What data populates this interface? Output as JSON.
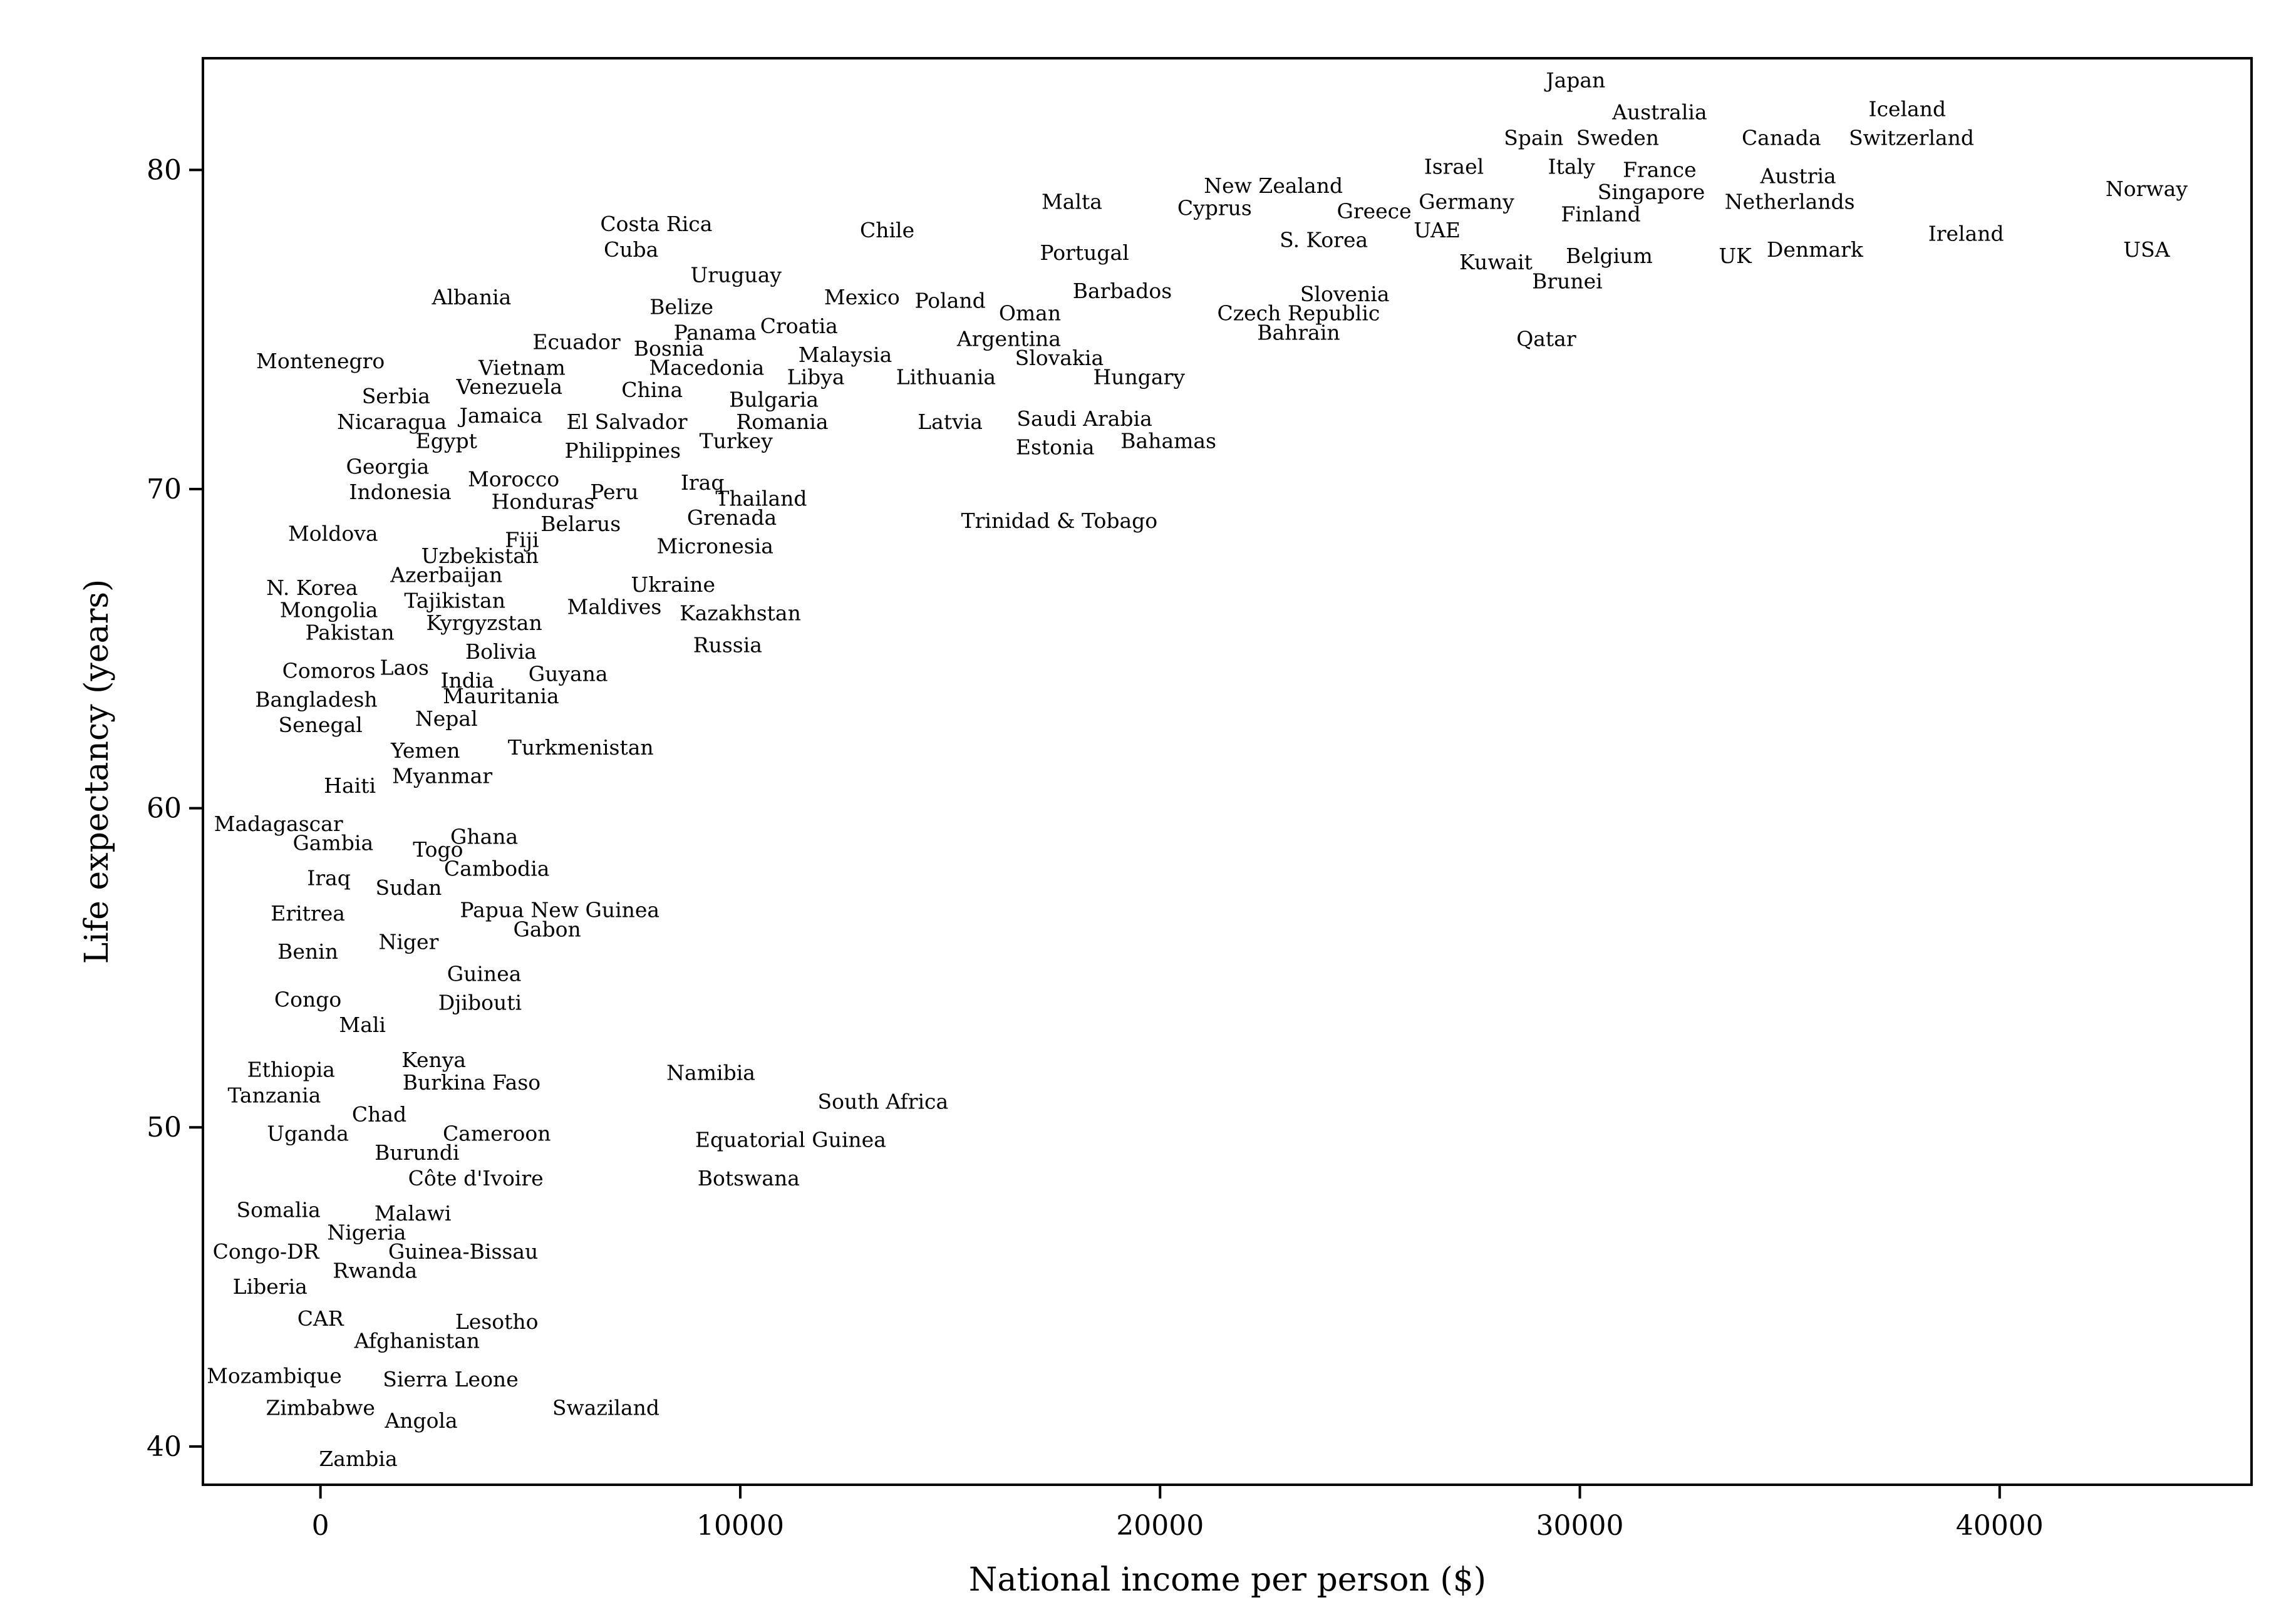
{
  "chart_data": {
    "type": "scatter",
    "title": "",
    "xlabel": "National income per person ($)",
    "ylabel": "Life expectancy (years)",
    "xlim": [
      -2800,
      46000
    ],
    "ylim": [
      38.8,
      83.5
    ],
    "xticks": [
      0,
      10000,
      20000,
      30000,
      40000
    ],
    "xtick_labels": [
      "0",
      "10000",
      "20000",
      "30000",
      "40000"
    ],
    "yticks": [
      40,
      50,
      60,
      70,
      80
    ],
    "ytick_labels": [
      "40",
      "50",
      "60",
      "70",
      "80"
    ],
    "grid": false,
    "marker": "country name text label",
    "points": [
      {
        "label": "Japan",
        "x": 29900,
        "y": 82.8
      },
      {
        "label": "Australia",
        "x": 31900,
        "y": 81.8
      },
      {
        "label": "Iceland",
        "x": 37800,
        "y": 81.9
      },
      {
        "label": "Switzerland",
        "x": 37900,
        "y": 81.0
      },
      {
        "label": "Spain",
        "x": 28900,
        "y": 81.0
      },
      {
        "label": "Sweden",
        "x": 30900,
        "y": 81.0
      },
      {
        "label": "Canada",
        "x": 34800,
        "y": 81.0
      },
      {
        "label": "Israel",
        "x": 27000,
        "y": 80.1
      },
      {
        "label": "Italy",
        "x": 29800,
        "y": 80.1
      },
      {
        "label": "France",
        "x": 31900,
        "y": 80.0
      },
      {
        "label": "Austria",
        "x": 35200,
        "y": 79.8
      },
      {
        "label": "Norway",
        "x": 43500,
        "y": 79.4
      },
      {
        "label": "New Zealand",
        "x": 22700,
        "y": 79.5
      },
      {
        "label": "Singapore",
        "x": 31700,
        "y": 79.3
      },
      {
        "label": "Malta",
        "x": 17900,
        "y": 79.0
      },
      {
        "label": "Germany",
        "x": 27300,
        "y": 79.0
      },
      {
        "label": "Netherlands",
        "x": 35000,
        "y": 79.0
      },
      {
        "label": "Cyprus",
        "x": 21300,
        "y": 78.8
      },
      {
        "label": "Greece",
        "x": 25100,
        "y": 78.7
      },
      {
        "label": "Finland",
        "x": 30500,
        "y": 78.6
      },
      {
        "label": "Costa Rica",
        "x": 8000,
        "y": 78.3
      },
      {
        "label": "Chile",
        "x": 13500,
        "y": 78.1
      },
      {
        "label": "UAE",
        "x": 26600,
        "y": 78.1
      },
      {
        "label": "Ireland",
        "x": 39200,
        "y": 78.0
      },
      {
        "label": "S. Korea",
        "x": 23900,
        "y": 77.8
      },
      {
        "label": "Cuba",
        "x": 7400,
        "y": 77.5
      },
      {
        "label": "Portugal",
        "x": 18200,
        "y": 77.4
      },
      {
        "label": "Denmark",
        "x": 35600,
        "y": 77.5
      },
      {
        "label": "USA",
        "x": 43500,
        "y": 77.5
      },
      {
        "label": "UK",
        "x": 33700,
        "y": 77.3
      },
      {
        "label": "Belgium",
        "x": 30700,
        "y": 77.3
      },
      {
        "label": "Kuwait",
        "x": 28000,
        "y": 77.1
      },
      {
        "label": "Uruguay",
        "x": 9900,
        "y": 76.7
      },
      {
        "label": "Brunei",
        "x": 29700,
        "y": 76.5
      },
      {
        "label": "Barbados",
        "x": 19100,
        "y": 76.2
      },
      {
        "label": "Slovenia",
        "x": 24400,
        "y": 76.1
      },
      {
        "label": "Albania",
        "x": 3600,
        "y": 76.0
      },
      {
        "label": "Mexico",
        "x": 12900,
        "y": 76.0
      },
      {
        "label": "Poland",
        "x": 15000,
        "y": 75.9
      },
      {
        "label": "Belize",
        "x": 8600,
        "y": 75.7
      },
      {
        "label": "Czech Republic",
        "x": 23300,
        "y": 75.5
      },
      {
        "label": "Oman",
        "x": 16900,
        "y": 75.5
      },
      {
        "label": "Croatia",
        "x": 11400,
        "y": 75.1
      },
      {
        "label": "Bahrain",
        "x": 23300,
        "y": 74.9
      },
      {
        "label": "Panama",
        "x": 9400,
        "y": 74.9
      },
      {
        "label": "Argentina",
        "x": 16400,
        "y": 74.7
      },
      {
        "label": "Qatar",
        "x": 29200,
        "y": 74.7
      },
      {
        "label": "Ecuador",
        "x": 6100,
        "y": 74.6
      },
      {
        "label": "Bosnia",
        "x": 8300,
        "y": 74.4
      },
      {
        "label": "Malaysia",
        "x": 12500,
        "y": 74.2
      },
      {
        "label": "Montenegro",
        "x": 0,
        "y": 74.0
      },
      {
        "label": "Slovakia",
        "x": 17600,
        "y": 74.1
      },
      {
        "label": "Vietnam",
        "x": 4800,
        "y": 73.8
      },
      {
        "label": "Macedonia",
        "x": 9200,
        "y": 73.8
      },
      {
        "label": "Libya",
        "x": 11800,
        "y": 73.5
      },
      {
        "label": "Lithuania",
        "x": 14900,
        "y": 73.5
      },
      {
        "label": "Hungary",
        "x": 19500,
        "y": 73.5
      },
      {
        "label": "Venezuela",
        "x": 4500,
        "y": 73.2
      },
      {
        "label": "China",
        "x": 7900,
        "y": 73.1
      },
      {
        "label": "Serbia",
        "x": 1800,
        "y": 72.9
      },
      {
        "label": "Bulgaria",
        "x": 10800,
        "y": 72.8
      },
      {
        "label": "Jamaica",
        "x": 4300,
        "y": 72.3
      },
      {
        "label": "Nicaragua",
        "x": 1700,
        "y": 72.1
      },
      {
        "label": "El Salvador",
        "x": 7300,
        "y": 72.1
      },
      {
        "label": "Romania",
        "x": 11000,
        "y": 72.1
      },
      {
        "label": "Latvia",
        "x": 15000,
        "y": 72.1
      },
      {
        "label": "Saudi Arabia",
        "x": 18200,
        "y": 72.2
      },
      {
        "label": "Egypt",
        "x": 3000,
        "y": 71.5
      },
      {
        "label": "Turkey",
        "x": 9900,
        "y": 71.5
      },
      {
        "label": "Bahamas",
        "x": 20200,
        "y": 71.5
      },
      {
        "label": "Philippines",
        "x": 7200,
        "y": 71.2
      },
      {
        "label": "Estonia",
        "x": 17500,
        "y": 71.3
      },
      {
        "label": "Georgia",
        "x": 1600,
        "y": 70.7
      },
      {
        "label": "Morocco",
        "x": 4600,
        "y": 70.3
      },
      {
        "label": "Iraq",
        "x": 9100,
        "y": 70.2
      },
      {
        "label": "Indonesia",
        "x": 1900,
        "y": 69.9
      },
      {
        "label": "Peru",
        "x": 7000,
        "y": 69.9
      },
      {
        "label": "Thailand",
        "x": 10500,
        "y": 69.7
      },
      {
        "label": "Honduras",
        "x": 5300,
        "y": 69.6
      },
      {
        "label": "Trinidad & Tobago",
        "x": 17600,
        "y": 69.0
      },
      {
        "label": "Grenada",
        "x": 9800,
        "y": 69.1
      },
      {
        "label": "Belarus",
        "x": 6200,
        "y": 68.9
      },
      {
        "label": "Moldova",
        "x": 300,
        "y": 68.6
      },
      {
        "label": "Fiji",
        "x": 4800,
        "y": 68.4
      },
      {
        "label": "Micronesia",
        "x": 9400,
        "y": 68.2
      },
      {
        "label": "Uzbekistan",
        "x": 3800,
        "y": 67.9
      },
      {
        "label": "Azerbaijan",
        "x": 3000,
        "y": 67.3
      },
      {
        "label": "Ukraine",
        "x": 8400,
        "y": 67.0
      },
      {
        "label": "N. Korea",
        "x": -200,
        "y": 66.9
      },
      {
        "label": "Tajikistan",
        "x": 3200,
        "y": 66.5
      },
      {
        "label": "Mongolia",
        "x": 200,
        "y": 66.2
      },
      {
        "label": "Maldives",
        "x": 7000,
        "y": 66.3
      },
      {
        "label": "Kazakhstan",
        "x": 10000,
        "y": 66.1
      },
      {
        "label": "Kyrgyzstan",
        "x": 3900,
        "y": 65.8
      },
      {
        "label": "Pakistan",
        "x": 700,
        "y": 65.5
      },
      {
        "label": "Russia",
        "x": 9700,
        "y": 65.1
      },
      {
        "label": "Bolivia",
        "x": 4300,
        "y": 64.9
      },
      {
        "label": "Laos",
        "x": 2000,
        "y": 64.4
      },
      {
        "label": "Comoros",
        "x": 200,
        "y": 64.3
      },
      {
        "label": "Guyana",
        "x": 5900,
        "y": 64.2
      },
      {
        "label": "India",
        "x": 3500,
        "y": 64.0
      },
      {
        "label": "Mauritania",
        "x": 4300,
        "y": 63.5
      },
      {
        "label": "Bangladesh",
        "x": -100,
        "y": 63.4
      },
      {
        "label": "Nepal",
        "x": 3000,
        "y": 62.8
      },
      {
        "label": "Senegal",
        "x": 0,
        "y": 62.6
      },
      {
        "label": "Turkmenistan",
        "x": 6200,
        "y": 61.9
      },
      {
        "label": "Yemen",
        "x": 2500,
        "y": 61.8
      },
      {
        "label": "Myanmar",
        "x": 2900,
        "y": 61.0
      },
      {
        "label": "Haiti",
        "x": 700,
        "y": 60.7
      },
      {
        "label": "Madagascar",
        "x": -1000,
        "y": 59.5
      },
      {
        "label": "Ghana",
        "x": 3900,
        "y": 59.1
      },
      {
        "label": "Gambia",
        "x": 300,
        "y": 58.9
      },
      {
        "label": "Togo",
        "x": 2800,
        "y": 58.7
      },
      {
        "label": "Cambodia",
        "x": 4200,
        "y": 58.1
      },
      {
        "label": "Iraq",
        "x": 200,
        "y": 57.8
      },
      {
        "label": "Sudan",
        "x": 2100,
        "y": 57.5
      },
      {
        "label": "Papua New Guinea",
        "x": 5700,
        "y": 56.8
      },
      {
        "label": "Eritrea",
        "x": -300,
        "y": 56.7
      },
      {
        "label": "Gabon",
        "x": 5400,
        "y": 56.2
      },
      {
        "label": "Niger",
        "x": 2100,
        "y": 55.8
      },
      {
        "label": "Benin",
        "x": -300,
        "y": 55.5
      },
      {
        "label": "Guinea",
        "x": 3900,
        "y": 54.8
      },
      {
        "label": "Congo",
        "x": -300,
        "y": 54.0
      },
      {
        "label": "Djibouti",
        "x": 3800,
        "y": 53.9
      },
      {
        "label": "Mali",
        "x": 1000,
        "y": 53.2
      },
      {
        "label": "Kenya",
        "x": 2700,
        "y": 52.1
      },
      {
        "label": "Namibia",
        "x": 9300,
        "y": 51.7
      },
      {
        "label": "Ethiopia",
        "x": -700,
        "y": 51.8
      },
      {
        "label": "Burkina Faso",
        "x": 3600,
        "y": 51.4
      },
      {
        "label": "Tanzania",
        "x": -1100,
        "y": 51.0
      },
      {
        "label": "South Africa",
        "x": 13400,
        "y": 50.8
      },
      {
        "label": "Chad",
        "x": 1400,
        "y": 50.4
      },
      {
        "label": "Cameroon",
        "x": 4200,
        "y": 49.8
      },
      {
        "label": "Uganda",
        "x": -300,
        "y": 49.8
      },
      {
        "label": "Equatorial Guinea",
        "x": 11200,
        "y": 49.6
      },
      {
        "label": "Burundi",
        "x": 2300,
        "y": 49.2
      },
      {
        "label": "Côte d'Ivoire",
        "x": 3700,
        "y": 48.4
      },
      {
        "label": "Botswana",
        "x": 10200,
        "y": 48.4
      },
      {
        "label": "Somalia",
        "x": -1000,
        "y": 47.4
      },
      {
        "label": "Malawi",
        "x": 2200,
        "y": 47.3
      },
      {
        "label": "Nigeria",
        "x": 1100,
        "y": 46.7
      },
      {
        "label": "Congo-DR",
        "x": -1300,
        "y": 46.1
      },
      {
        "label": "Guinea-Bissau",
        "x": 3400,
        "y": 46.1
      },
      {
        "label": "Rwanda",
        "x": 1300,
        "y": 45.5
      },
      {
        "label": "Liberia",
        "x": -1200,
        "y": 45.0
      },
      {
        "label": "CAR",
        "x": 0,
        "y": 44.0
      },
      {
        "label": "Lesotho",
        "x": 4200,
        "y": 43.9
      },
      {
        "label": "Afghanistan",
        "x": 2300,
        "y": 43.3
      },
      {
        "label": "Mozambique",
        "x": -1100,
        "y": 42.2
      },
      {
        "label": "Sierra Leone",
        "x": 3100,
        "y": 42.1
      },
      {
        "label": "Zimbabwe",
        "x": 0,
        "y": 41.2
      },
      {
        "label": "Swaziland",
        "x": 6800,
        "y": 41.2
      },
      {
        "label": "Angola",
        "x": 2400,
        "y": 40.8
      },
      {
        "label": "Zambia",
        "x": 900,
        "y": 39.6
      }
    ]
  }
}
